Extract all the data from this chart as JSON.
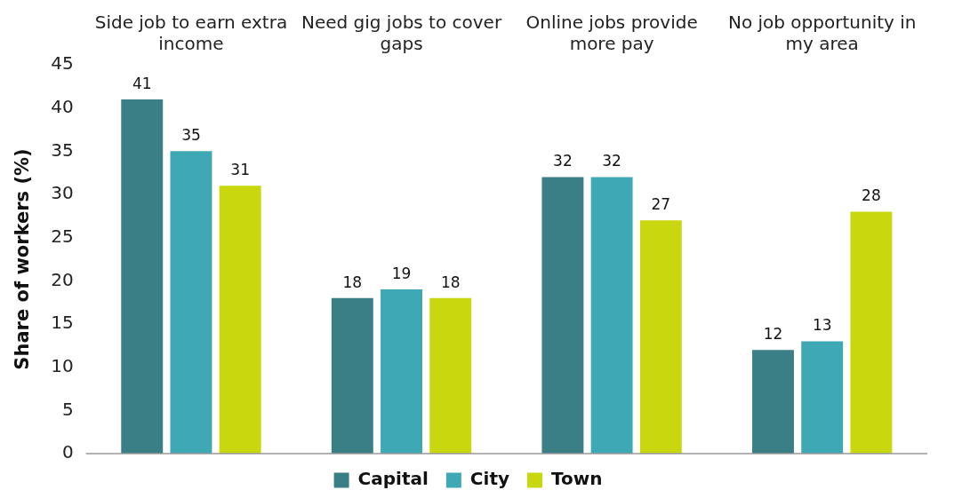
{
  "chart_data": {
    "type": "bar",
    "ylabel": "Share of workers (%)",
    "categories": [
      "Side job to earn extra income",
      "Need gig jobs to cover gaps",
      "Online jobs provide more pay",
      "No job opportunity in my area"
    ],
    "series": [
      {
        "name": "Capital",
        "color": "#3a7f86",
        "values": [
          41,
          18,
          32,
          12
        ]
      },
      {
        "name": "City",
        "color": "#3fa8b5",
        "values": [
          35,
          19,
          32,
          13
        ]
      },
      {
        "name": "Town",
        "color": "#c9d80e",
        "values": [
          31,
          18,
          27,
          28
        ]
      }
    ],
    "ylim": [
      0,
      45
    ],
    "yticks": [
      0,
      5,
      10,
      15,
      20,
      25,
      30,
      35,
      40,
      45
    ],
    "grid": false,
    "legend": "bottom",
    "data_labels": true
  }
}
